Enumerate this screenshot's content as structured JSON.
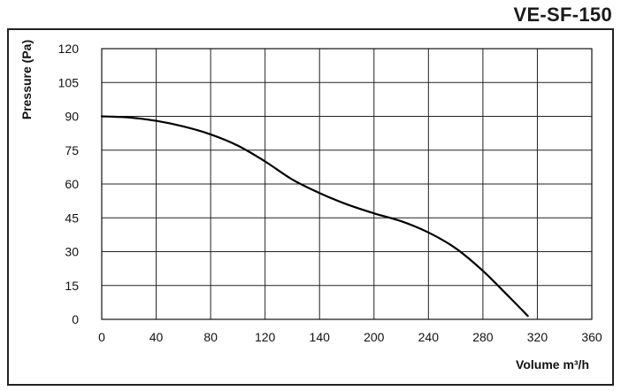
{
  "chart_data": {
    "type": "line",
    "title": "VE-SF-150",
    "xlabel": "Volume m³/h",
    "ylabel": "Pressure (Pa)",
    "x_ticks": [
      "0",
      "40",
      "80",
      "120",
      "140",
      "200",
      "240",
      "280",
      "320",
      "360"
    ],
    "y_ticks": [
      "0",
      "15",
      "30",
      "45",
      "60",
      "75",
      "90",
      "105",
      "120"
    ],
    "xlim": [
      0,
      360
    ],
    "ylim": [
      0,
      120
    ],
    "grid": true,
    "series": [
      {
        "color": "#000000",
        "x": [
          0,
          20,
          40,
          60,
          80,
          100,
          120,
          140,
          160,
          180,
          200,
          220,
          240,
          260,
          280,
          300,
          313
        ],
        "y": [
          90,
          89.5,
          88,
          85.5,
          82,
          77,
          70,
          62,
          56,
          51,
          47,
          43.5,
          38.5,
          31.5,
          21.5,
          9.5,
          1.5
        ]
      }
    ]
  }
}
